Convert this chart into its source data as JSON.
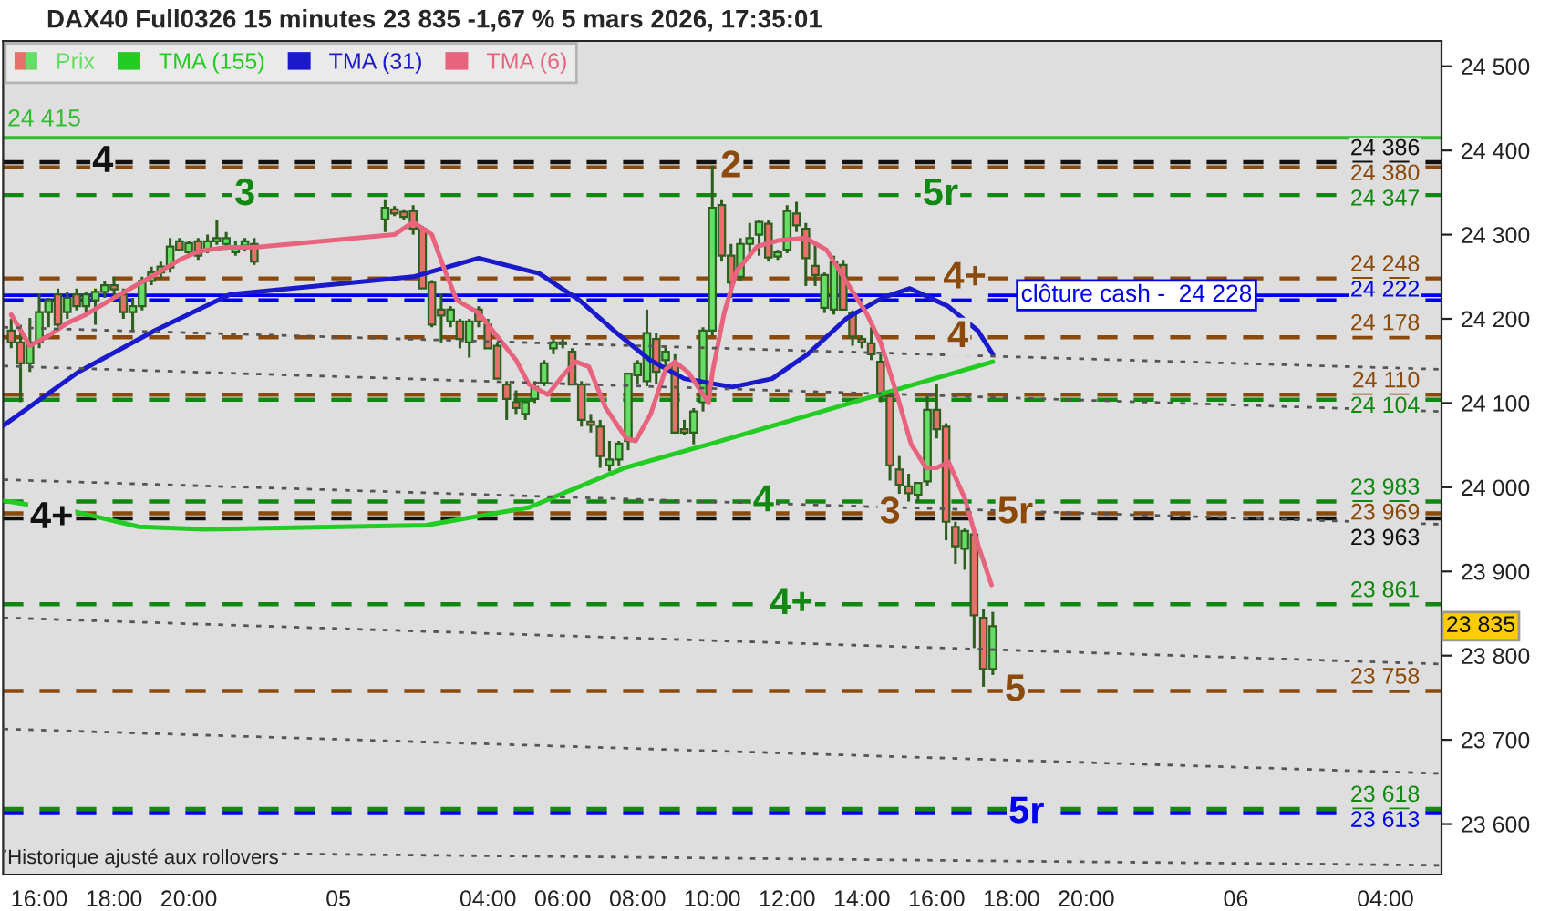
{
  "chart_data": {
    "type": "candlestick",
    "title": "DAX40 Full0326 15 minutes 23 835 -1,67 % 5 mars 2026, 17:35:01",
    "xlim": [
      "2026-03-04T15:02",
      "2026-03-06T05:30"
    ],
    "xticks": [
      {
        "value": "2026-03-04T16:00",
        "label": "16:00"
      },
      {
        "value": "2026-03-04T18:00",
        "label": "18:00"
      },
      {
        "value": "2026-03-04T20:00",
        "label": "20:00"
      },
      {
        "value": "2026-03-05T00:00",
        "label": "05"
      },
      {
        "value": "2026-03-05T04:00",
        "label": "04:00"
      },
      {
        "value": "2026-03-05T06:00",
        "label": "06:00"
      },
      {
        "value": "2026-03-05T08:00",
        "label": "08:00"
      },
      {
        "value": "2026-03-05T10:00",
        "label": "10:00"
      },
      {
        "value": "2026-03-05T12:00",
        "label": "12:00"
      },
      {
        "value": "2026-03-05T14:00",
        "label": "14:00"
      },
      {
        "value": "2026-03-05T16:00",
        "label": "16:00"
      },
      {
        "value": "2026-03-05T18:00",
        "label": "18:00"
      },
      {
        "value": "2026-03-05T20:00",
        "label": "20:00"
      },
      {
        "value": "2026-03-06T00:00",
        "label": "06"
      },
      {
        "value": "2026-03-06T04:00",
        "label": "04:00"
      }
    ],
    "ylim": [
      23540,
      24530
    ],
    "yticks": [
      {
        "value": 23600,
        "label": "23 600"
      },
      {
        "value": 23700,
        "label": "23 700"
      },
      {
        "value": 23800,
        "label": "23 800"
      },
      {
        "value": 23900,
        "label": "23 900"
      },
      {
        "value": 24000,
        "label": "24 000"
      },
      {
        "value": 24100,
        "label": "24 100"
      },
      {
        "value": 24200,
        "label": "24 200"
      },
      {
        "value": 24300,
        "label": "24 300"
      },
      {
        "value": 24400,
        "label": "24 400"
      },
      {
        "value": 24500,
        "label": "24 500"
      }
    ],
    "legend": "top left",
    "series": [
      {
        "name": "Prix",
        "x": [
          "2026-03-04T15:15",
          "2026-03-04T15:30",
          "2026-03-04T15:45",
          "2026-03-04T16:00",
          "2026-03-04T16:15",
          "2026-03-04T16:30",
          "2026-03-04T16:45",
          "2026-03-04T17:00",
          "2026-03-04T17:15",
          "2026-03-04T17:30",
          "2026-03-04T17:45",
          "2026-03-04T18:00",
          "2026-03-04T18:15",
          "2026-03-04T18:30",
          "2026-03-04T18:45",
          "2026-03-04T19:00",
          "2026-03-04T19:15",
          "2026-03-04T19:30",
          "2026-03-04T19:45",
          "2026-03-04T20:00",
          "2026-03-04T20:15",
          "2026-03-04T20:30",
          "2026-03-04T20:45",
          "2026-03-04T21:00",
          "2026-03-04T21:15",
          "2026-03-04T21:30",
          "2026-03-04T21:45",
          "2026-03-05T01:15",
          "2026-03-05T01:30",
          "2026-03-05T01:45",
          "2026-03-05T02:00",
          "2026-03-05T02:15",
          "2026-03-05T02:30",
          "2026-03-05T02:45",
          "2026-03-05T03:00",
          "2026-03-05T03:15",
          "2026-03-05T03:30",
          "2026-03-05T03:45",
          "2026-03-05T04:00",
          "2026-03-05T04:15",
          "2026-03-05T04:30",
          "2026-03-05T04:45",
          "2026-03-05T05:00",
          "2026-03-05T05:15",
          "2026-03-05T05:30",
          "2026-03-05T05:45",
          "2026-03-05T06:00",
          "2026-03-05T06:15",
          "2026-03-05T06:30",
          "2026-03-05T06:45",
          "2026-03-05T07:00",
          "2026-03-05T07:15",
          "2026-03-05T07:30",
          "2026-03-05T07:45",
          "2026-03-05T08:00",
          "2026-03-05T08:15",
          "2026-03-05T08:30",
          "2026-03-05T08:45",
          "2026-03-05T09:00",
          "2026-03-05T09:15",
          "2026-03-05T09:30",
          "2026-03-05T09:45",
          "2026-03-05T10:00",
          "2026-03-05T10:15",
          "2026-03-05T10:30",
          "2026-03-05T10:45",
          "2026-03-05T11:00",
          "2026-03-05T11:15",
          "2026-03-05T11:30",
          "2026-03-05T11:45",
          "2026-03-05T12:00",
          "2026-03-05T12:15",
          "2026-03-05T12:30",
          "2026-03-05T12:45",
          "2026-03-05T13:00",
          "2026-03-05T13:15",
          "2026-03-05T13:30",
          "2026-03-05T13:45",
          "2026-03-05T14:00",
          "2026-03-05T14:15",
          "2026-03-05T14:30",
          "2026-03-05T14:45",
          "2026-03-05T15:00",
          "2026-03-05T15:15",
          "2026-03-05T15:30",
          "2026-03-05T15:45",
          "2026-03-05T16:00",
          "2026-03-05T16:15",
          "2026-03-05T16:30",
          "2026-03-05T16:45",
          "2026-03-05T17:00",
          "2026-03-05T17:15",
          "2026-03-05T17:30"
        ],
        "ohlc": [
          [
            24186,
            24200,
            24165,
            24172
          ],
          [
            24172,
            24193,
            24101,
            24147
          ],
          [
            24147,
            24201,
            24137,
            24172
          ],
          [
            24172,
            24229,
            24165,
            24208
          ],
          [
            24208,
            24225,
            24190,
            24222
          ],
          [
            24229,
            24236,
            24190,
            24193
          ],
          [
            24208,
            24232,
            24200,
            24225
          ],
          [
            24229,
            24236,
            24210,
            24215
          ],
          [
            24215,
            24232,
            24208,
            24229
          ],
          [
            24222,
            24236,
            24193,
            24232
          ],
          [
            24232,
            24245,
            24225,
            24240
          ],
          [
            24240,
            24250,
            24228,
            24235
          ],
          [
            24229,
            24236,
            24200,
            24208
          ],
          [
            24208,
            24225,
            24186,
            24215
          ],
          [
            24215,
            24250,
            24210,
            24245
          ],
          [
            24245,
            24262,
            24240,
            24255
          ],
          [
            24255,
            24268,
            24248,
            24262
          ],
          [
            24261,
            24296,
            24255,
            24286
          ],
          [
            24292,
            24296,
            24280,
            24282
          ],
          [
            24279,
            24292,
            24275,
            24290
          ],
          [
            24292,
            24296,
            24270,
            24275
          ],
          [
            24282,
            24300,
            24278,
            24292
          ],
          [
            24292,
            24318,
            24288,
            24296
          ],
          [
            24289,
            24303,
            24282,
            24296
          ],
          [
            24279,
            24292,
            24275,
            24286
          ],
          [
            24287,
            24296,
            24280,
            24292
          ],
          [
            24289,
            24296,
            24264,
            24268
          ],
          [
            24318,
            24342,
            24303,
            24332
          ],
          [
            24330,
            24334,
            24322,
            24325
          ],
          [
            24327,
            24330,
            24318,
            24321
          ],
          [
            24328,
            24335,
            24300,
            24307
          ],
          [
            24307,
            24310,
            24236,
            24236
          ],
          [
            24243,
            24246,
            24190,
            24193
          ],
          [
            24211,
            24229,
            24172,
            24204
          ],
          [
            24197,
            24215,
            24190,
            24211
          ],
          [
            24197,
            24200,
            24165,
            24176
          ],
          [
            24172,
            24200,
            24154,
            24197
          ],
          [
            24211,
            24215,
            24190,
            24197
          ],
          [
            24193,
            24200,
            24165,
            24165
          ],
          [
            24168,
            24172,
            24129,
            24129
          ],
          [
            24122,
            24126,
            24080,
            24105
          ],
          [
            24101,
            24115,
            24087,
            24094
          ],
          [
            24087,
            24101,
            24080,
            24101
          ],
          [
            24105,
            24126,
            24100,
            24119
          ],
          [
            24124,
            24151,
            24120,
            24147
          ],
          [
            24165,
            24176,
            24158,
            24172
          ],
          [
            24170,
            24176,
            24165,
            24172
          ],
          [
            24161,
            24165,
            24122,
            24122
          ],
          [
            24122,
            24126,
            24072,
            24080
          ],
          [
            24078,
            24087,
            24065,
            24074
          ],
          [
            24072,
            24080,
            24023,
            24037
          ],
          [
            24026,
            24055,
            24019,
            24033
          ],
          [
            24033,
            24055,
            24026,
            24052
          ],
          [
            24055,
            24136,
            24044,
            24135
          ],
          [
            24133,
            24151,
            24122,
            24147
          ],
          [
            24126,
            24211,
            24120,
            24183
          ],
          [
            24176,
            24183,
            24122,
            24137
          ],
          [
            24151,
            24168,
            24140,
            24161
          ],
          [
            24147,
            24158,
            24065,
            24065
          ],
          [
            24069,
            24080,
            24062,
            24065
          ],
          [
            24065,
            24094,
            24051,
            24090
          ],
          [
            24101,
            24190,
            24090,
            24186
          ],
          [
            24186,
            24382,
            24180,
            24332
          ],
          [
            24335,
            24342,
            24268,
            24275
          ],
          [
            24275,
            24289,
            24225,
            24243
          ],
          [
            24250,
            24296,
            24245,
            24289
          ],
          [
            24289,
            24314,
            24272,
            24296
          ],
          [
            24300,
            24318,
            24275,
            24315
          ],
          [
            24313,
            24318,
            24268,
            24273
          ],
          [
            24274,
            24282,
            24270,
            24279
          ],
          [
            24282,
            24335,
            24278,
            24328
          ],
          [
            24325,
            24339,
            24303,
            24311
          ],
          [
            24307,
            24314,
            24239,
            24272
          ],
          [
            24263,
            24289,
            24239,
            24252
          ],
          [
            24213,
            24255,
            24207,
            24252
          ],
          [
            24211,
            24275,
            24205,
            24268
          ],
          [
            24264,
            24270,
            24211,
            24211
          ],
          [
            24207,
            24210,
            24168,
            24179
          ],
          [
            24176,
            24180,
            24165,
            24172
          ],
          [
            24171,
            24190,
            24151,
            24158
          ],
          [
            24149,
            24158,
            24101,
            24108
          ],
          [
            24108,
            24115,
            24008,
            24026
          ],
          [
            24021,
            24037,
            23987,
            24003
          ],
          [
            24001,
            24016,
            23983,
            23993
          ],
          [
            23991,
            24005,
            23983,
            24005
          ],
          [
            24007,
            24108,
            24001,
            24092
          ],
          [
            24092,
            24122,
            24058,
            24069
          ],
          [
            24072,
            24076,
            23937,
            23959
          ],
          [
            23953,
            23959,
            23909,
            23930
          ],
          [
            23927,
            23951,
            23902,
            23948
          ],
          [
            23944,
            23951,
            23809,
            23848
          ],
          [
            23845,
            23855,
            23763,
            23784
          ],
          [
            23784,
            23852,
            23777,
            23835
          ]
        ],
        "colors": [
          "#e8706a",
          "#e8706a",
          "#66dd66",
          "#66dd66",
          "#66dd66",
          "#e8706a",
          "#66dd66",
          "#e8706a",
          "#66dd66",
          "#66dd66",
          "#66dd66",
          "#e8706a",
          "#e8706a",
          "#66dd66",
          "#66dd66",
          "#66dd66",
          "#66dd66",
          "#66dd66",
          "#e8706a",
          "#66dd66",
          "#e8706a",
          "#66dd66",
          "#66dd66",
          "#66dd66",
          "#66dd66",
          "#66dd66",
          "#e8706a",
          "#66dd66",
          "#e8706a",
          "#e8706a",
          "#e8706a",
          "#e8706a",
          "#e8706a",
          "#e8706a",
          "#66dd66",
          "#e8706a",
          "#66dd66",
          "#e8706a",
          "#e8706a",
          "#e8706a",
          "#e8706a",
          "#e8706a",
          "#66dd66",
          "#66dd66",
          "#66dd66",
          "#66dd66",
          "#66dd66",
          "#e8706a",
          "#e8706a",
          "#e8706a",
          "#e8706a",
          "#66dd66",
          "#66dd66",
          "#66dd66",
          "#66dd66",
          "#66dd66",
          "#e8706a",
          "#66dd66",
          "#e8706a",
          "#e8706a",
          "#66dd66",
          "#66dd66",
          "#66dd66",
          "#e8706a",
          "#e8706a",
          "#66dd66",
          "#66dd66",
          "#66dd66",
          "#e8706a",
          "#66dd66",
          "#66dd66",
          "#e8706a",
          "#e8706a",
          "#e8706a",
          "#66dd66",
          "#66dd66",
          "#e8706a",
          "#e8706a",
          "#e8706a",
          "#e8706a",
          "#e8706a",
          "#e8706a",
          "#e8706a",
          "#e8706a",
          "#66dd66",
          "#66dd66",
          "#e8706a",
          "#e8706a",
          "#e8706a",
          "#66dd66",
          "#e8706a",
          "#e8706a",
          "#66dd66"
        ]
      },
      {
        "type": "line",
        "name": "TMA (155)",
        "color": "#22cc22",
        "x": [
          "2026-03-04T15:02",
          "2026-03-04T17:03",
          "2026-03-04T18:40",
          "2026-03-04T20:25",
          "2026-03-05T02:21",
          "2026-03-05T05:06",
          "2026-03-05T07:39",
          "2026-03-05T09:59",
          "2026-03-05T12:42",
          "2026-03-05T15:23",
          "2026-03-05T17:30"
        ],
        "values": [
          23984,
          23970,
          23953,
          23950,
          23955,
          23976,
          24023,
          24052,
          24087,
          24122,
          24149
        ]
      },
      {
        "type": "line",
        "name": "TMA (31)",
        "color": "#1a1acc",
        "x": [
          "2026-03-04T15:02",
          "2026-03-04T17:03",
          "2026-03-04T19:05",
          "2026-03-04T21:06",
          "2026-03-05T02:00",
          "2026-03-05T03:45",
          "2026-03-05T05:22",
          "2026-03-05T06:27",
          "2026-03-05T07:22",
          "2026-03-05T08:20",
          "2026-03-05T09:15",
          "2026-03-05T10:32",
          "2026-03-05T11:36",
          "2026-03-05T12:33",
          "2026-03-05T13:36",
          "2026-03-05T14:33",
          "2026-03-05T15:17",
          "2026-03-05T16:18",
          "2026-03-05T17:06",
          "2026-03-05T17:30"
        ],
        "values": [
          24073,
          24137,
          24186,
          24229,
          24250,
          24272,
          24254,
          24222,
          24186,
          24151,
          24129,
          24119,
          24129,
          24158,
          24201,
          24225,
          24236,
          24215,
          24186,
          24158
        ]
      },
      {
        "type": "line",
        "name": "TMA (6)",
        "color": "#e8647e",
        "x": [
          "2026-03-04T15:15",
          "2026-03-04T15:45",
          "2026-03-04T16:15",
          "2026-03-04T16:45",
          "2026-03-04T17:15",
          "2026-03-04T18:00",
          "2026-03-04T19:00",
          "2026-03-04T19:45",
          "2026-03-04T20:15",
          "2026-03-04T21:00",
          "2026-03-04T21:45",
          "2026-03-05T01:30",
          "2026-03-05T02:00",
          "2026-03-05T02:30",
          "2026-03-05T02:51",
          "2026-03-05T03:10",
          "2026-03-05T03:45",
          "2026-03-05T04:15",
          "2026-03-05T04:45",
          "2026-03-05T05:06",
          "2026-03-05T05:36",
          "2026-03-05T06:04",
          "2026-03-05T06:21",
          "2026-03-05T06:42",
          "2026-03-05T07:09",
          "2026-03-05T07:42",
          "2026-03-05T07:57",
          "2026-03-05T08:21",
          "2026-03-05T08:45",
          "2026-03-05T09:00",
          "2026-03-05T09:22",
          "2026-03-05T09:54",
          "2026-03-05T10:00",
          "2026-03-05T10:19",
          "2026-03-05T10:39",
          "2026-03-05T11:12",
          "2026-03-05T11:45",
          "2026-03-05T12:30",
          "2026-03-05T13:03",
          "2026-03-05T13:36",
          "2026-03-05T14:07",
          "2026-03-05T14:30",
          "2026-03-05T14:57",
          "2026-03-05T15:19",
          "2026-03-05T15:43",
          "2026-03-05T16:00",
          "2026-03-05T16:19",
          "2026-03-05T16:45",
          "2026-03-05T17:07",
          "2026-03-05T17:28"
        ],
        "values": [
          24205,
          24168,
          24180,
          24195,
          24205,
          24225,
          24250,
          24270,
          24280,
          24285,
          24285,
          24300,
          24315,
          24300,
          24257,
          24222,
          24207,
          24179,
          24151,
          24122,
          24110,
          24136,
          24149,
          24143,
          24094,
          24058,
          24055,
          24087,
          24140,
          24149,
          24136,
          24100,
          24136,
          24207,
          24257,
          24286,
          24293,
          24296,
          24282,
          24243,
          24207,
          24172,
          24108,
          24051,
          24023,
          24023,
          24030,
          23987,
          23930,
          23884
        ]
      },
      {
        "type": "line",
        "color": "#555555",
        "line_style": "dotted",
        "x": [
          "2026-03-04T15:02",
          "2026-03-06T05:30"
        ],
        "values": [
          24190,
          24140
        ]
      },
      {
        "type": "line",
        "color": "#555555",
        "line_style": "dotted",
        "x": [
          "2026-03-04T15:02",
          "2026-03-06T05:30"
        ],
        "values": [
          24144,
          24090
        ]
      },
      {
        "type": "line",
        "color": "#555555",
        "line_style": "dotted",
        "x": [
          "2026-03-04T15:02",
          "2026-03-06T05:30"
        ],
        "values": [
          24009,
          23956
        ]
      },
      {
        "type": "line",
        "color": "#555555",
        "line_style": "dotted",
        "x": [
          "2026-03-04T15:02",
          "2026-03-06T05:30"
        ],
        "values": [
          23845,
          23790
        ]
      },
      {
        "type": "line",
        "color": "#555555",
        "line_style": "dotted",
        "x": [
          "2026-03-04T15:02",
          "2026-03-06T05:30"
        ],
        "values": [
          23713,
          23660
        ]
      },
      {
        "type": "line",
        "color": "#555555",
        "line_style": "dotted",
        "x": [
          "2026-03-04T15:02",
          "2026-03-06T05:30"
        ],
        "values": [
          23568,
          23551
        ]
      }
    ],
    "ref_lines": [
      {
        "axis": "y",
        "value": 24415,
        "label": "24 415",
        "color": "#33bb33",
        "line_style": "solid"
      },
      {
        "axis": "y",
        "value": 24228,
        "label": "clôture cash -  24 228",
        "color": "#0000ee",
        "line_style": "solid"
      },
      {
        "axis": "y",
        "value": 24386,
        "label": "24 386",
        "color": "#111111",
        "line_style": "dashed"
      },
      {
        "axis": "y",
        "value": 24380,
        "label": "24 380",
        "color": "#8b4a0b",
        "line_style": "dashed"
      },
      {
        "axis": "y",
        "value": 24347,
        "label": "24 347",
        "color": "#118811",
        "line_style": "dashed"
      },
      {
        "axis": "y",
        "value": 24248,
        "label": "24 248",
        "color": "#8b4a0b",
        "line_style": "dashed"
      },
      {
        "axis": "y",
        "value": 24222,
        "label": "24 222",
        "color": "#0000ee",
        "line_style": "dashed"
      },
      {
        "axis": "y",
        "value": 24178,
        "label": "24 178",
        "color": "#8b4a0b",
        "line_style": "dashed"
      },
      {
        "axis": "y",
        "value": 24110,
        "label": "24 110",
        "color": "#8b4a0b",
        "line_style": "dashed"
      },
      {
        "axis": "y",
        "value": 24104,
        "label": "24 104",
        "color": "#118811",
        "line_style": "dashed"
      },
      {
        "axis": "y",
        "value": 23983,
        "label": "23 983",
        "color": "#118811",
        "line_style": "dashed"
      },
      {
        "axis": "y",
        "value": 23969,
        "label": "23 969",
        "color": "#8b4a0b",
        "line_style": "dashed"
      },
      {
        "axis": "y",
        "value": 23963,
        "label": "23 963",
        "color": "#111111",
        "line_style": "dashed"
      },
      {
        "axis": "y",
        "value": 23861,
        "label": "23 861",
        "color": "#118811",
        "line_style": "dashed"
      },
      {
        "axis": "y",
        "value": 23758,
        "label": "23 758",
        "color": "#8b4a0b",
        "line_style": "dashed"
      },
      {
        "axis": "y",
        "value": 23618,
        "label": "23 618",
        "color": "#118811",
        "line_style": "dashed"
      },
      {
        "axis": "y",
        "value": 23613,
        "label": "23 613",
        "color": "#0000ee",
        "line_style": "dashed"
      }
    ],
    "annotations": [
      {
        "text": "23 835",
        "y": 23835
      },
      {
        "text": "4",
        "x": "2026-03-04T17:42",
        "y": 24386
      },
      {
        "text": "4+",
        "x": "2026-03-04T16:20",
        "y": 23963
      },
      {
        "text": "3",
        "x": "2026-03-04T21:30",
        "y": 24347
      },
      {
        "text": "2",
        "x": "2026-03-05T10:30",
        "y": 24380
      },
      {
        "text": "5r",
        "x": "2026-03-05T16:06",
        "y": 24347
      },
      {
        "text": "4+",
        "x": "2026-03-05T16:45",
        "y": 24248
      },
      {
        "text": "4",
        "x": "2026-03-05T16:34",
        "y": 24178
      },
      {
        "text": "4",
        "x": "2026-03-05T11:22",
        "y": 23983
      },
      {
        "text": "3",
        "x": "2026-03-05T14:45",
        "y": 23969
      },
      {
        "text": "5r",
        "x": "2026-03-05T18:06",
        "y": 23969
      },
      {
        "text": "4+",
        "x": "2026-03-05T12:07",
        "y": 23861
      },
      {
        "text": "5",
        "x": "2026-03-05T18:06",
        "y": 23758
      },
      {
        "text": "5r",
        "x": "2026-03-05T18:24",
        "y": 23613
      },
      "Historique ajusté aux rollovers"
    ]
  }
}
